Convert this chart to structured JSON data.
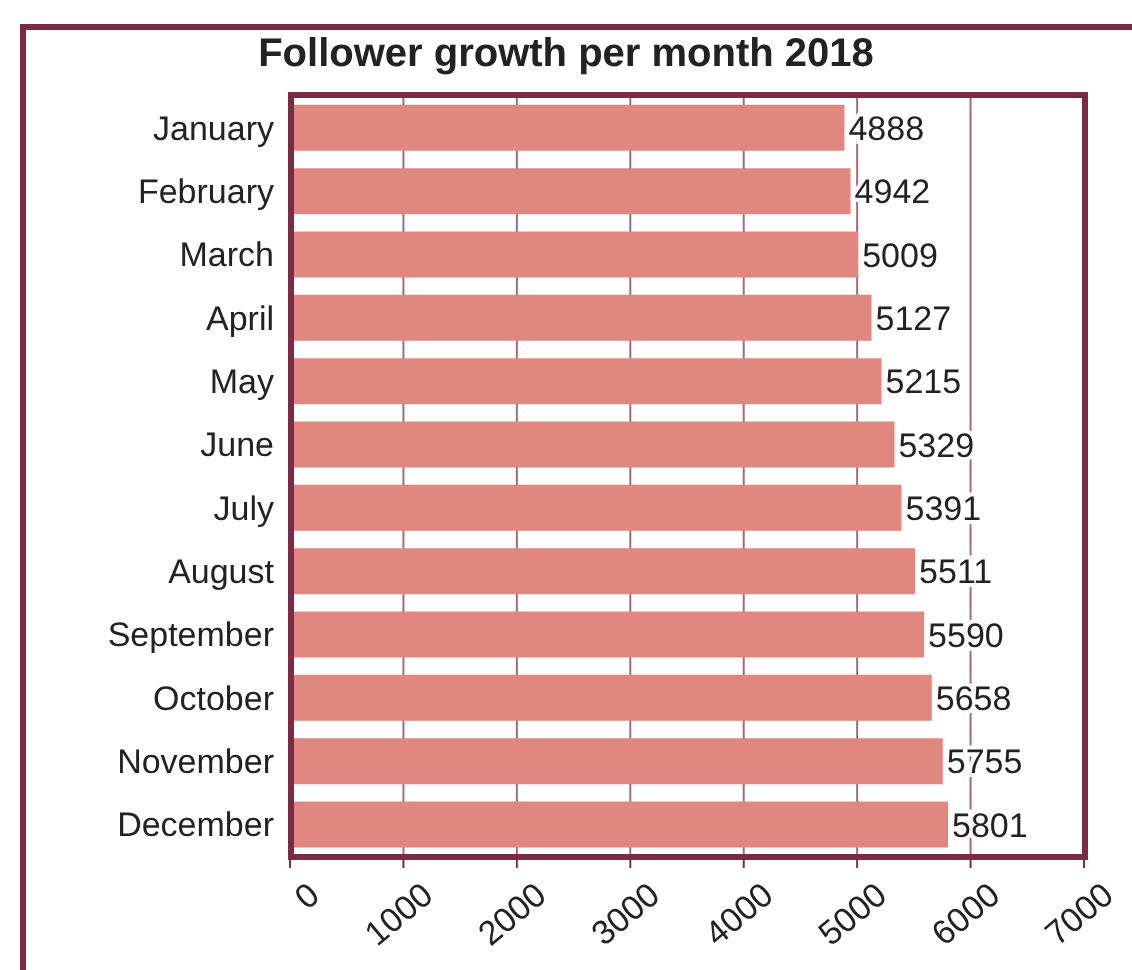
{
  "chart_data": {
    "type": "bar",
    "title": "Follower growth per month 2018",
    "orientation": "horizontal",
    "categories": [
      "January",
      "February",
      "March",
      "April",
      "May",
      "June",
      "July",
      "August",
      "September",
      "October",
      "November",
      "December"
    ],
    "values": [
      4888,
      4942,
      5009,
      5127,
      5215,
      5329,
      5391,
      5511,
      5590,
      5658,
      5755,
      5801
    ],
    "color": "#e08780",
    "xlim": [
      0,
      7000
    ],
    "xticks": [
      0,
      1000,
      2000,
      3000,
      4000,
      5000,
      6000,
      7000
    ],
    "grid": "x",
    "data_labels": true
  }
}
